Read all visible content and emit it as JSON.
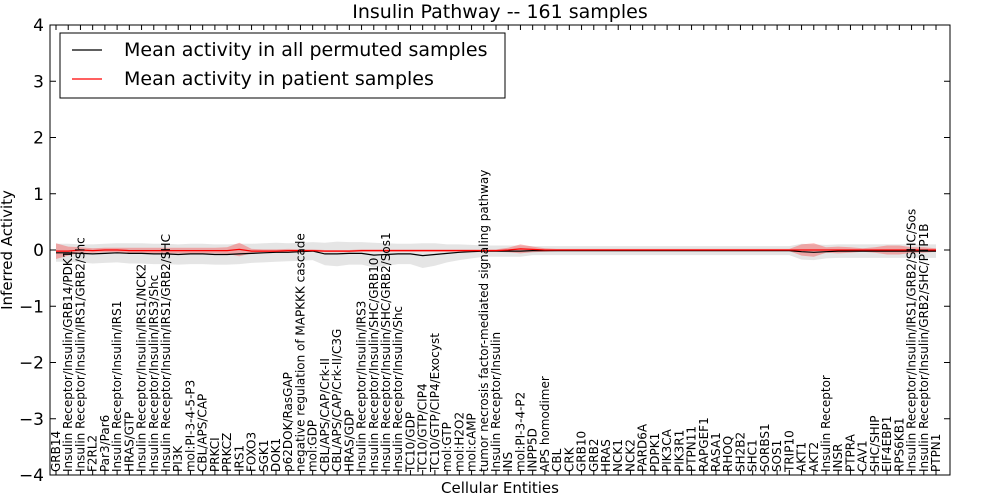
{
  "chart_data": {
    "type": "line",
    "title": "Insulin Pathway -- 161 samples",
    "xlabel": "Cellular Entities",
    "ylabel": "Inferred Activity",
    "ylim": [
      -4,
      4
    ],
    "yticks": [
      "4",
      "3",
      "2",
      "1",
      "0",
      "−1",
      "−2",
      "−3",
      "−4"
    ],
    "ytick_values": [
      4,
      3,
      2,
      1,
      0,
      -1,
      -2,
      -3,
      -4
    ],
    "legend": {
      "position": "top-left"
    },
    "grid": false,
    "categories": [
      "GRB14",
      "Insulin Receptor/Insulin/GRB14/PDK1",
      "Insulin Receptor/Insulin/IRS1/GRB2/Shc",
      "F2RL2",
      "Par3/Par6",
      "Insulin Receptor/Insulin/IRS1",
      "HRAS/GTP",
      "Insulin Receptor/Insulin/IRS1/NCK2",
      "Insulin Receptor/Insulin/IRS3/Shc",
      "Insulin Receptor/Insulin/IRS1/GRB2/SHC",
      "PI3K",
      "mol:PI-3-4-5-P3",
      "CBL/APS/CAP",
      "PRKCI",
      "PRKCZ",
      "IRS1",
      "FOXO3",
      "SGK1",
      "DOK1",
      "p62DOK/RasGAP",
      "negative regulation of MAPKKK cascade",
      "mol:GDP",
      "CBL/APS/CAP/Crk-II",
      "CBL/APS/CAP/Crk-II/C3G",
      "HRAS/GDP",
      "Insulin Receptor/Insulin/IRS3",
      "Insulin Receptor/Insulin/SHC/GRB10",
      "Insulin Receptor/Insulin/SHC/GRB2/Sos1",
      "Insulin Receptor/Insulin/Shc",
      "TC10/GDP",
      "TC10/GTP/CIP4",
      "TC10/GTP/CIP4/Exocyst",
      "mol:GTP",
      "mol:H2O2",
      "mol:cAMP",
      "tumor necrosis factor-mediated signaling pathway",
      "Insulin Receptor/Insulin",
      "INS",
      "mol:PI-3-4-P2",
      "INPP5D",
      "APS homodimer",
      "CBL",
      "CRK",
      "GRB10",
      "GRB2",
      "HRAS",
      "NCK1",
      "NCK2",
      "PARD6A",
      "PDPK1",
      "PIK3CA",
      "PIK3R1",
      "PTPN11",
      "RAPGEF1",
      "RASA1",
      "RHOQ",
      "SH2B2",
      "SHC1",
      "SORBS1",
      "SOS1",
      "TRIP10",
      "AKT1",
      "AKT2",
      "Insulin Receptor",
      "INSR",
      "PTPRA",
      "CAV1",
      "SHC/SHIP",
      "EIF4EBP1",
      "RPS6KB1",
      "Insulin Receptor/Insulin/IRS1/GRB2/SHC/Sos",
      "Insulin Receptor/Insulin/GRB2/SHC/PTP1B",
      "PTPN1"
    ],
    "series": [
      {
        "name": "Mean activity in all permuted samples",
        "color": "#000000",
        "values": [
          -0.05,
          -0.05,
          -0.06,
          -0.07,
          -0.06,
          -0.05,
          -0.06,
          -0.06,
          -0.07,
          -0.07,
          -0.08,
          -0.07,
          -0.07,
          -0.08,
          -0.08,
          -0.07,
          -0.06,
          -0.05,
          -0.04,
          -0.04,
          -0.03,
          -0.02,
          -0.07,
          -0.07,
          -0.06,
          -0.06,
          -0.09,
          -0.08,
          -0.07,
          -0.07,
          -0.1,
          -0.08,
          -0.06,
          -0.04,
          -0.03,
          -0.02,
          -0.02,
          -0.02,
          -0.02,
          -0.01,
          -0.01,
          -0.01,
          -0.01,
          -0.01,
          -0.01,
          -0.01,
          -0.01,
          -0.01,
          -0.01,
          -0.01,
          -0.01,
          -0.01,
          -0.01,
          -0.01,
          -0.01,
          -0.01,
          -0.01,
          -0.01,
          -0.01,
          -0.01,
          -0.01,
          -0.03,
          -0.04,
          -0.03,
          -0.02,
          -0.02,
          -0.02,
          -0.02,
          -0.02,
          -0.02,
          -0.02,
          -0.02,
          -0.02
        ],
        "band": [
          0.16,
          0.16,
          0.16,
          0.17,
          0.17,
          0.17,
          0.18,
          0.18,
          0.18,
          0.18,
          0.18,
          0.18,
          0.18,
          0.18,
          0.18,
          0.18,
          0.17,
          0.17,
          0.17,
          0.16,
          0.16,
          0.16,
          0.2,
          0.22,
          0.2,
          0.2,
          0.22,
          0.2,
          0.18,
          0.18,
          0.22,
          0.2,
          0.16,
          0.14,
          0.12,
          0.1,
          0.1,
          0.1,
          0.1,
          0.08,
          0.08,
          0.08,
          0.08,
          0.08,
          0.08,
          0.08,
          0.08,
          0.08,
          0.08,
          0.08,
          0.08,
          0.08,
          0.08,
          0.08,
          0.08,
          0.08,
          0.08,
          0.08,
          0.08,
          0.08,
          0.08,
          0.14,
          0.14,
          0.12,
          0.12,
          0.12,
          0.12,
          0.12,
          0.12,
          0.12,
          0.12,
          0.12,
          0.12
        ]
      },
      {
        "name": "Mean activity in patient samples",
        "color": "#ff0000",
        "values": [
          -0.02,
          -0.02,
          0.0,
          -0.01,
          0.0,
          0.0,
          -0.01,
          -0.01,
          -0.01,
          -0.01,
          -0.01,
          -0.01,
          -0.01,
          -0.01,
          -0.01,
          0.01,
          -0.02,
          -0.02,
          -0.02,
          -0.01,
          -0.01,
          -0.01,
          -0.02,
          -0.02,
          -0.02,
          -0.01,
          -0.01,
          -0.01,
          -0.01,
          -0.01,
          -0.01,
          -0.01,
          -0.01,
          -0.01,
          -0.01,
          -0.01,
          -0.01,
          0.0,
          0.02,
          0.01,
          0.0,
          0.0,
          0.0,
          0.0,
          0.0,
          0.0,
          0.0,
          0.0,
          0.0,
          0.0,
          0.0,
          0.0,
          0.0,
          0.0,
          0.0,
          0.0,
          0.0,
          0.0,
          0.0,
          0.0,
          0.0,
          0.0,
          0.0,
          0.0,
          0.0,
          0.0,
          0.0,
          0.0,
          0.0,
          0.0,
          0.0,
          0.0,
          0.0
        ],
        "band": [
          0.14,
          0.08,
          0.05,
          0.04,
          0.04,
          0.04,
          0.05,
          0.05,
          0.05,
          0.05,
          0.05,
          0.05,
          0.05,
          0.05,
          0.06,
          0.12,
          0.04,
          0.03,
          0.03,
          0.03,
          0.02,
          0.02,
          0.02,
          0.02,
          0.02,
          0.02,
          0.02,
          0.02,
          0.02,
          0.02,
          0.02,
          0.02,
          0.02,
          0.02,
          0.02,
          0.02,
          0.02,
          0.04,
          0.08,
          0.05,
          0.03,
          0.02,
          0.02,
          0.02,
          0.02,
          0.02,
          0.02,
          0.02,
          0.02,
          0.02,
          0.02,
          0.02,
          0.02,
          0.02,
          0.02,
          0.02,
          0.02,
          0.02,
          0.02,
          0.02,
          0.02,
          0.1,
          0.12,
          0.05,
          0.06,
          0.05,
          0.03,
          0.05,
          0.08,
          0.08,
          0.05,
          0.05,
          0.03
        ]
      }
    ]
  }
}
